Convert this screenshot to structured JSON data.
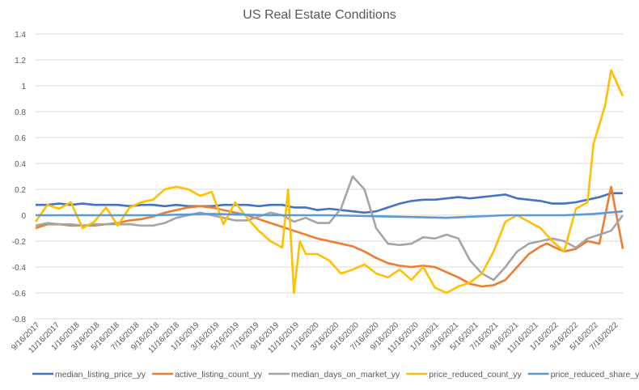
{
  "chart_data": {
    "type": "line",
    "title": "US Real Estate Conditions",
    "xlabel": "",
    "ylabel": "",
    "ylim": [
      -0.8,
      1.4
    ],
    "yticks": [
      "1.4",
      "1.2",
      "1",
      "0.8",
      "0.6",
      "0.4",
      "0.2",
      "0",
      "-0.2",
      "-0.4",
      "-0.6",
      "-0.8"
    ],
    "ytick_values": [
      1.4,
      1.2,
      1,
      0.8,
      0.6,
      0.4,
      0.2,
      0,
      -0.2,
      -0.4,
      -0.6,
      -0.8
    ],
    "grid": true,
    "legend_position": "bottom",
    "xticks": [
      "9/16/2017",
      "11/16/2017",
      "1/16/2018",
      "3/16/2018",
      "5/16/2018",
      "7/16/2018",
      "9/16/2018",
      "11/16/2018",
      "1/16/2019",
      "3/16/2019",
      "5/16/2019",
      "7/16/2019",
      "9/16/2019",
      "11/16/2019",
      "1/16/2020",
      "3/16/2020",
      "5/16/2020",
      "7/16/2020",
      "9/16/2020",
      "11/16/2020",
      "1/16/2021",
      "3/16/2021",
      "5/16/2021",
      "7/16/2021",
      "9/16/2021",
      "11/16/2021",
      "1/16/2022",
      "3/16/2022",
      "5/16/2022",
      "7/16/2022"
    ],
    "x_note": "x positions are fractions of the date range (0 = 9/16/2017, 1 = ~8/2022)",
    "series": [
      {
        "name": "median_listing_price_yy",
        "color": "#4472C4",
        "x": [
          0,
          0.02,
          0.04,
          0.06,
          0.08,
          0.1,
          0.12,
          0.14,
          0.16,
          0.18,
          0.2,
          0.22,
          0.24,
          0.26,
          0.28,
          0.3,
          0.32,
          0.34,
          0.36,
          0.38,
          0.4,
          0.42,
          0.44,
          0.46,
          0.48,
          0.5,
          0.52,
          0.54,
          0.56,
          0.58,
          0.6,
          0.62,
          0.64,
          0.66,
          0.68,
          0.7,
          0.72,
          0.74,
          0.76,
          0.78,
          0.8,
          0.82,
          0.84,
          0.86,
          0.88,
          0.9,
          0.92,
          0.94,
          0.96,
          0.98,
          1
        ],
        "values": [
          0.08,
          0.08,
          0.09,
          0.08,
          0.09,
          0.08,
          0.08,
          0.08,
          0.07,
          0.08,
          0.08,
          0.07,
          0.08,
          0.07,
          0.07,
          0.07,
          0.08,
          0.08,
          0.08,
          0.07,
          0.08,
          0.08,
          0.06,
          0.06,
          0.04,
          0.05,
          0.04,
          0.03,
          0.02,
          0.03,
          0.06,
          0.09,
          0.11,
          0.12,
          0.12,
          0.13,
          0.14,
          0.13,
          0.14,
          0.15,
          0.16,
          0.13,
          0.12,
          0.11,
          0.09,
          0.09,
          0.1,
          0.12,
          0.14,
          0.17,
          0.17
        ]
      },
      {
        "name": "active_listing_count_yy",
        "color": "#ED7D31",
        "x": [
          0,
          0.02,
          0.04,
          0.06,
          0.08,
          0.1,
          0.12,
          0.14,
          0.16,
          0.18,
          0.2,
          0.22,
          0.24,
          0.26,
          0.28,
          0.3,
          0.32,
          0.34,
          0.36,
          0.38,
          0.4,
          0.42,
          0.44,
          0.46,
          0.48,
          0.5,
          0.52,
          0.54,
          0.56,
          0.58,
          0.6,
          0.62,
          0.64,
          0.66,
          0.68,
          0.7,
          0.72,
          0.74,
          0.76,
          0.78,
          0.8,
          0.82,
          0.84,
          0.86,
          0.87,
          0.872,
          0.88,
          0.9,
          0.92,
          0.94,
          0.96,
          0.98,
          1
        ],
        "values": [
          -0.1,
          -0.07,
          -0.07,
          -0.08,
          -0.08,
          -0.08,
          -0.07,
          -0.06,
          -0.04,
          -0.03,
          -0.01,
          0.02,
          0.04,
          0.06,
          0.07,
          0.06,
          0.04,
          0.02,
          0.0,
          -0.03,
          -0.06,
          -0.09,
          -0.12,
          -0.15,
          -0.18,
          -0.2,
          -0.22,
          -0.24,
          -0.28,
          -0.33,
          -0.37,
          -0.39,
          -0.4,
          -0.39,
          -0.4,
          -0.44,
          -0.48,
          -0.53,
          -0.55,
          -0.54,
          -0.5,
          -0.4,
          -0.3,
          -0.24,
          -0.22,
          -0.22,
          -0.24,
          -0.28,
          -0.26,
          -0.2,
          -0.22,
          0.22,
          -0.26
        ]
      },
      {
        "name": "median_days_on_market_yy",
        "color": "#A5A5A5",
        "x": [
          0,
          0.02,
          0.04,
          0.06,
          0.08,
          0.1,
          0.12,
          0.14,
          0.16,
          0.18,
          0.2,
          0.22,
          0.24,
          0.26,
          0.28,
          0.3,
          0.32,
          0.34,
          0.36,
          0.38,
          0.4,
          0.42,
          0.44,
          0.46,
          0.48,
          0.5,
          0.52,
          0.54,
          0.56,
          0.58,
          0.6,
          0.62,
          0.64,
          0.66,
          0.68,
          0.7,
          0.72,
          0.74,
          0.76,
          0.78,
          0.8,
          0.82,
          0.84,
          0.86,
          0.88,
          0.9,
          0.92,
          0.94,
          0.96,
          0.98,
          1
        ],
        "values": [
          -0.08,
          -0.06,
          -0.07,
          -0.07,
          -0.08,
          -0.07,
          -0.07,
          -0.07,
          -0.07,
          -0.08,
          -0.08,
          -0.06,
          -0.02,
          0.0,
          0.02,
          0.0,
          -0.02,
          -0.04,
          -0.04,
          -0.01,
          0.02,
          0.0,
          -0.05,
          -0.02,
          -0.06,
          -0.06,
          0.05,
          0.3,
          0.2,
          -0.1,
          -0.22,
          -0.23,
          -0.22,
          -0.17,
          -0.18,
          -0.15,
          -0.18,
          -0.35,
          -0.45,
          -0.5,
          -0.4,
          -0.28,
          -0.22,
          -0.2,
          -0.18,
          -0.2,
          -0.25,
          -0.18,
          -0.15,
          -0.12,
          0.0
        ]
      },
      {
        "name": "price_reduced_count_yy",
        "color": "#FFC000",
        "x": [
          0,
          0.02,
          0.04,
          0.06,
          0.08,
          0.1,
          0.12,
          0.14,
          0.16,
          0.18,
          0.2,
          0.22,
          0.24,
          0.26,
          0.28,
          0.3,
          0.32,
          0.34,
          0.36,
          0.38,
          0.4,
          0.42,
          0.43,
          0.44,
          0.45,
          0.46,
          0.48,
          0.5,
          0.52,
          0.54,
          0.56,
          0.58,
          0.6,
          0.62,
          0.64,
          0.66,
          0.68,
          0.7,
          0.72,
          0.74,
          0.76,
          0.78,
          0.8,
          0.82,
          0.84,
          0.86,
          0.88,
          0.9,
          0.92,
          0.94,
          0.95,
          0.96,
          0.97,
          0.98,
          1
        ],
        "values": [
          -0.05,
          0.08,
          0.05,
          0.1,
          -0.1,
          -0.05,
          0.06,
          -0.08,
          0.06,
          0.1,
          0.12,
          0.2,
          0.22,
          0.2,
          0.15,
          0.18,
          -0.07,
          0.1,
          -0.02,
          -0.12,
          -0.2,
          -0.25,
          0.2,
          -0.6,
          -0.2,
          -0.3,
          -0.3,
          -0.35,
          -0.45,
          -0.42,
          -0.38,
          -0.45,
          -0.48,
          -0.42,
          -0.5,
          -0.4,
          -0.56,
          -0.6,
          -0.55,
          -0.52,
          -0.45,
          -0.28,
          -0.05,
          0.0,
          -0.05,
          -0.1,
          -0.2,
          -0.28,
          0.05,
          0.1,
          0.55,
          0.7,
          0.85,
          1.12,
          0.92
        ]
      },
      {
        "name": "price_reduced_share_yy",
        "color": "#5B9BD5",
        "x": [
          0,
          0.1,
          0.2,
          0.3,
          0.4,
          0.5,
          0.6,
          0.7,
          0.8,
          0.9,
          0.95,
          1
        ],
        "values": [
          0.0,
          0.0,
          0.0,
          0.01,
          0.0,
          0.0,
          -0.01,
          -0.02,
          0.0,
          0.0,
          0.01,
          0.03
        ]
      }
    ]
  }
}
